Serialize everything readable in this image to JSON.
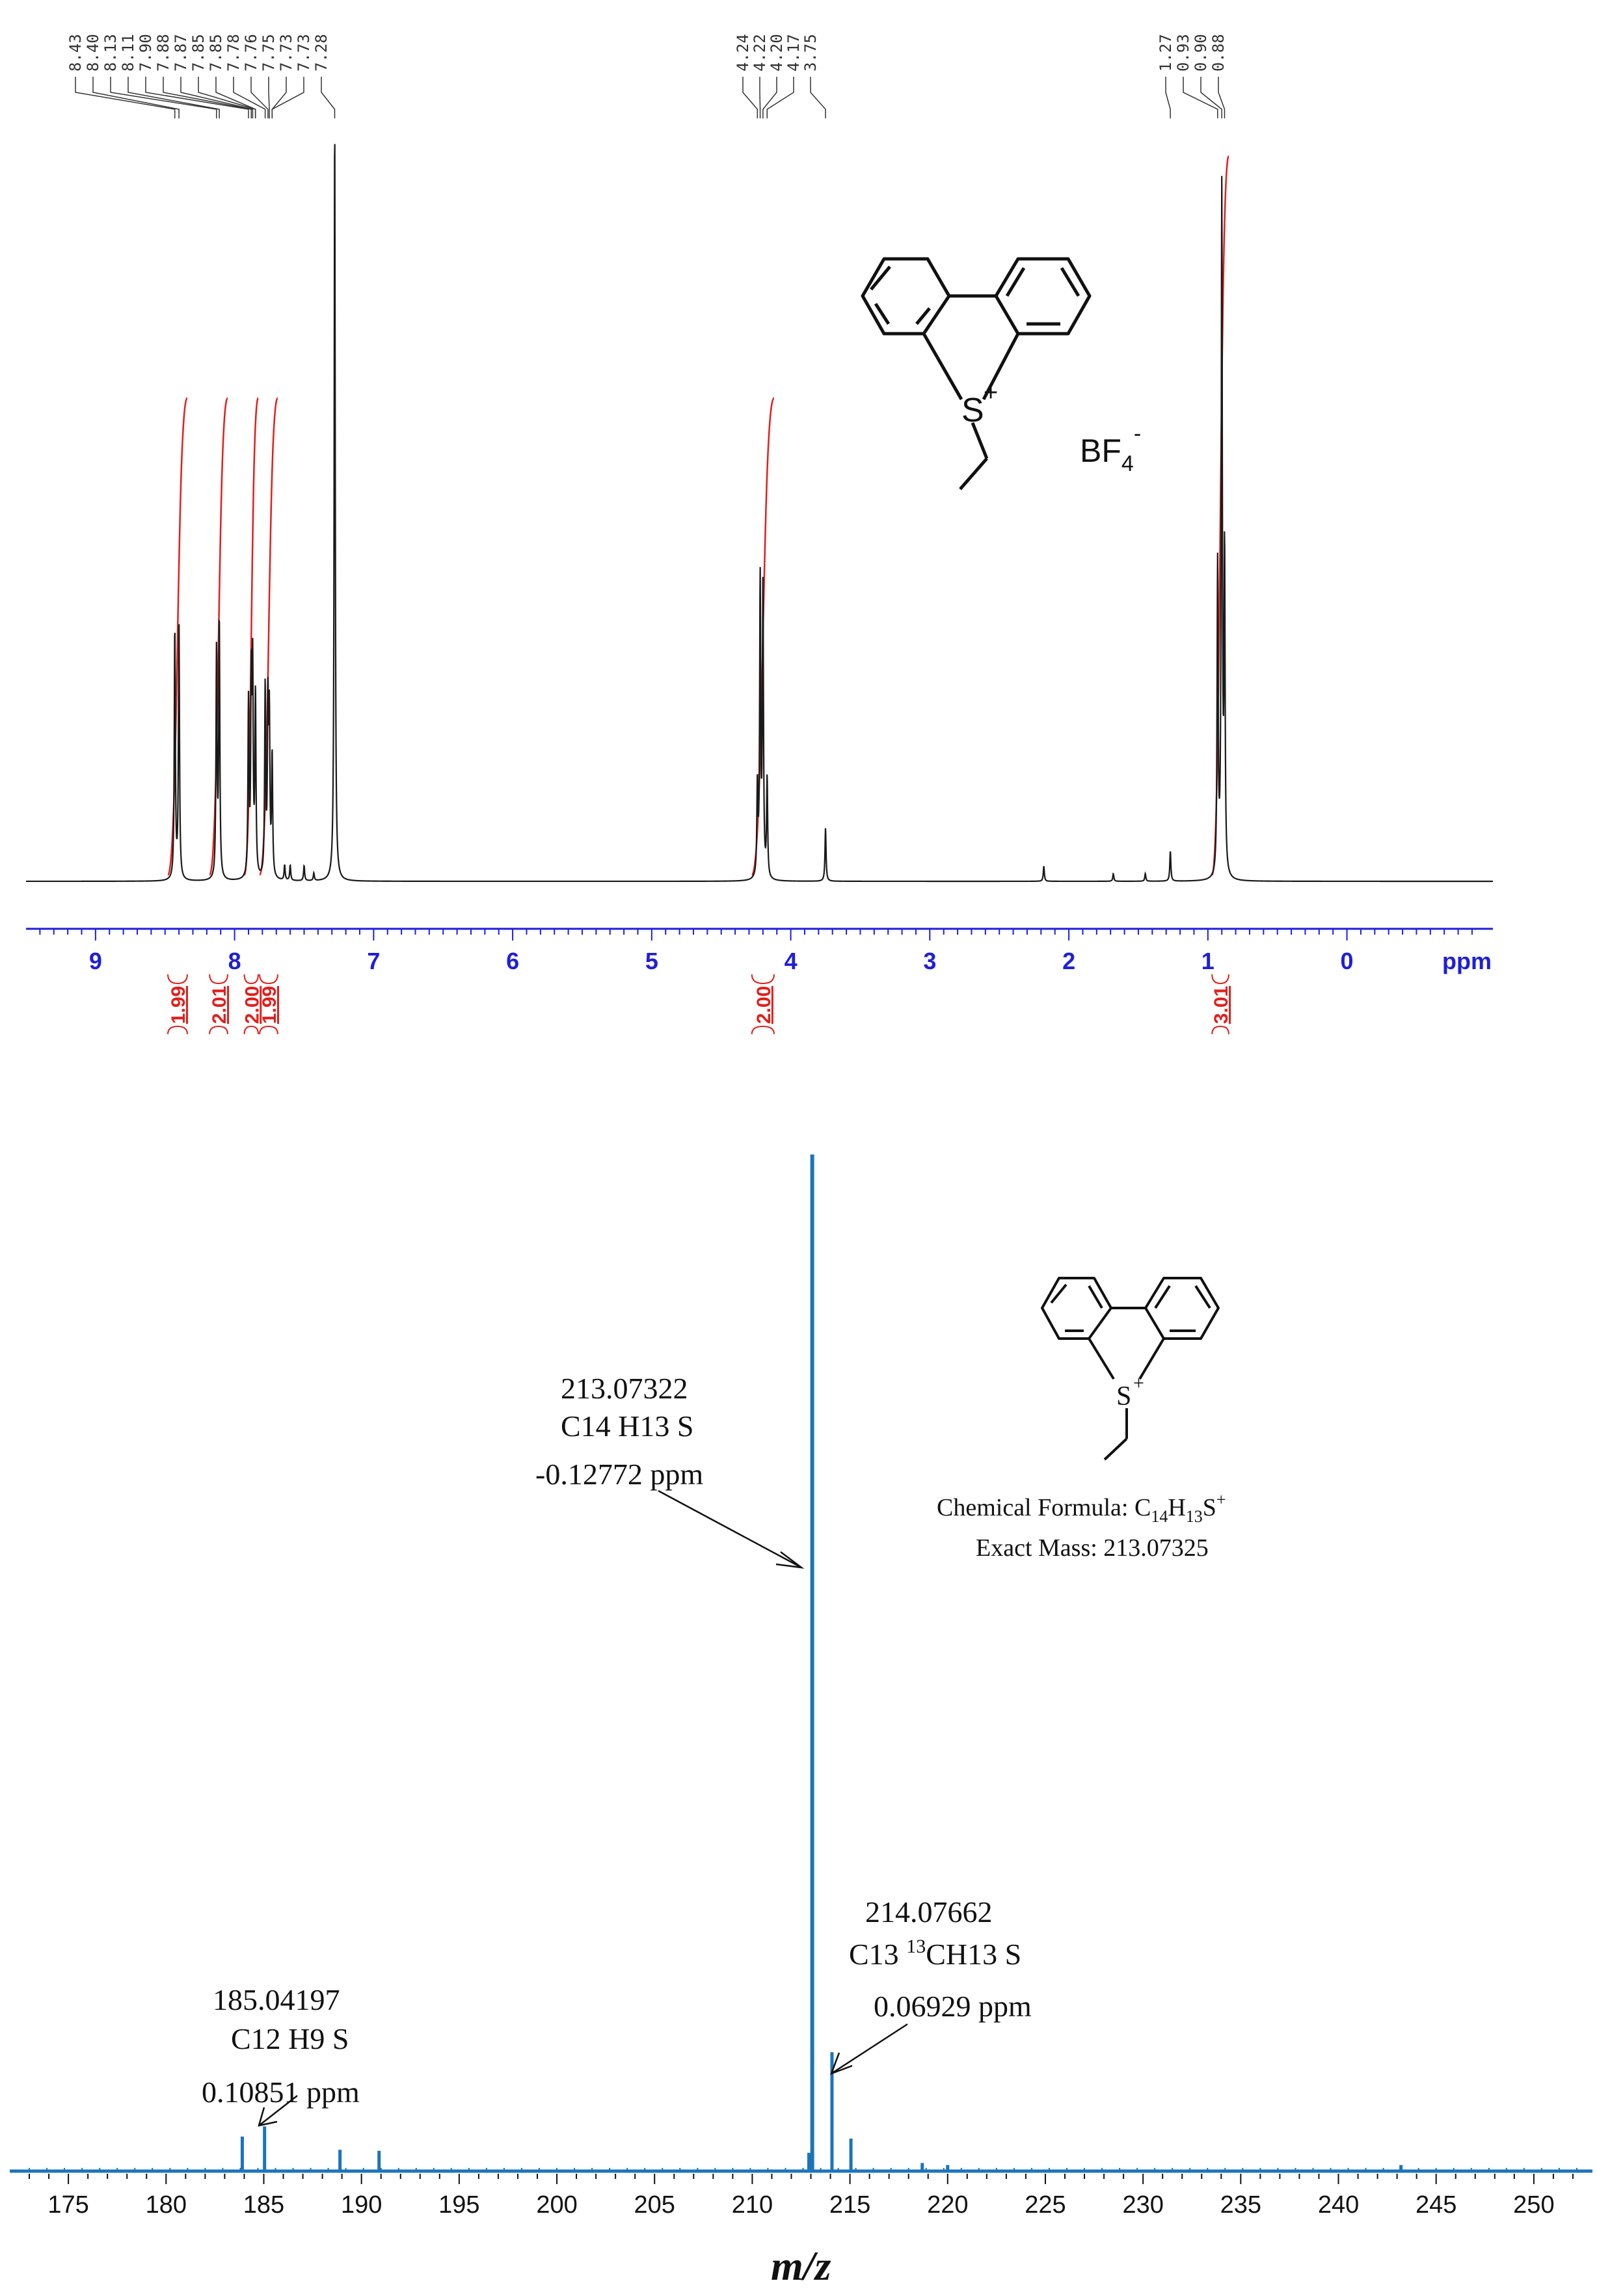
{
  "chart_data": [
    {
      "type": "line",
      "peak_labels": {
        "group1": [
          "8.43",
          "8.40",
          "8.13",
          "8.11",
          "7.90",
          "7.88",
          "7.87",
          "7.85",
          "7.85",
          "7.78",
          "7.76",
          "7.75",
          "7.73",
          "7.73",
          "7.28"
        ],
        "group2": [
          "4.24",
          "4.22",
          "4.20",
          "4.17",
          "3.75"
        ],
        "group3": [
          "1.27",
          "0.93",
          "0.90",
          "0.88"
        ]
      },
      "xaxis": {
        "ticks": [
          "9",
          "8",
          "7",
          "6",
          "5",
          "4",
          "3",
          "2",
          "1",
          "0"
        ],
        "unit": "ppm",
        "range": [
          9.5,
          -1.05
        ],
        "reversed": true
      },
      "integrals": [
        {
          "value": "1.99",
          "from": 8.48,
          "to": 8.34
        },
        {
          "value": "2.01",
          "from": 8.18,
          "to": 8.05
        },
        {
          "value": "2.00",
          "from": 7.93,
          "to": 7.83
        },
        {
          "value": "1.99",
          "from": 7.82,
          "to": 7.69
        },
        {
          "value": "2.00",
          "from": 4.28,
          "to": 4.12
        },
        {
          "value": "3.01",
          "from": 0.97,
          "to": 0.85
        }
      ],
      "peaks": [
        {
          "x": 8.43,
          "h": 0.33
        },
        {
          "x": 8.4,
          "h": 0.34
        },
        {
          "x": 8.13,
          "h": 0.3
        },
        {
          "x": 8.11,
          "h": 0.34
        },
        {
          "x": 7.9,
          "h": 0.23
        },
        {
          "x": 7.88,
          "h": 0.25
        },
        {
          "x": 7.87,
          "h": 0.26
        },
        {
          "x": 7.85,
          "h": 0.24
        },
        {
          "x": 7.78,
          "h": 0.25
        },
        {
          "x": 7.76,
          "h": 0.22
        },
        {
          "x": 7.75,
          "h": 0.2
        },
        {
          "x": 7.73,
          "h": 0.16
        },
        {
          "x": 7.64,
          "h": 0.02
        },
        {
          "x": 7.6,
          "h": 0.02
        },
        {
          "x": 7.5,
          "h": 0.02
        },
        {
          "x": 7.43,
          "h": 0.01
        },
        {
          "x": 7.28,
          "h": 1.0
        },
        {
          "x": 4.24,
          "h": 0.12
        },
        {
          "x": 4.22,
          "h": 0.39
        },
        {
          "x": 4.2,
          "h": 0.38
        },
        {
          "x": 4.17,
          "h": 0.13
        },
        {
          "x": 3.75,
          "h": 0.07
        },
        {
          "x": 2.18,
          "h": 0.02
        },
        {
          "x": 1.68,
          "h": 0.01
        },
        {
          "x": 1.45,
          "h": 0.01
        },
        {
          "x": 1.27,
          "h": 0.04
        },
        {
          "x": 0.93,
          "h": 0.41
        },
        {
          "x": 0.9,
          "h": 0.9
        },
        {
          "x": 0.88,
          "h": 0.42
        }
      ],
      "structure_label": {
        "text": "BF",
        "sub": "4",
        "sup": "-"
      },
      "structure_atom": "S",
      "structure_charge": "+"
    },
    {
      "type": "bar",
      "xlabel": "m/z",
      "xaxis": {
        "ticks": [
          "175",
          "180",
          "185",
          "190",
          "195",
          "200",
          "205",
          "210",
          "215",
          "220",
          "225",
          "230",
          "235",
          "240",
          "245",
          "250"
        ],
        "range": [
          172.0,
          253.0
        ]
      },
      "peaks": [
        {
          "x": 183.9,
          "h": 3.4
        },
        {
          "x": 185.04,
          "h": 4.4
        },
        {
          "x": 188.9,
          "h": 2.1
        },
        {
          "x": 190.9,
          "h": 2.0
        },
        {
          "x": 212.9,
          "h": 1.8
        },
        {
          "x": 213.07,
          "h": 100.0
        },
        {
          "x": 214.08,
          "h": 11.7
        },
        {
          "x": 215.05,
          "h": 3.2
        },
        {
          "x": 218.7,
          "h": 0.8
        },
        {
          "x": 220.0,
          "h": 0.6
        },
        {
          "x": 243.2,
          "h": 0.6
        }
      ],
      "annotations": [
        {
          "mz": "213.07322",
          "formula": "C14 H13 S",
          "error": "-0.12772 ppm"
        },
        {
          "mz": "214.07662",
          "formula_pre": "C13 ",
          "formula_sup": "13",
          "formula_post": "CH13 S",
          "error": "0.06929 ppm"
        },
        {
          "mz": "185.04197",
          "formula": "C12 H9 S",
          "error": "0.10851 ppm"
        }
      ],
      "structure_atom": "S",
      "structure_charge": "+",
      "formula_label": "Chemical Formula: ",
      "formula_parts": [
        "C",
        "14",
        "H",
        "13",
        "S",
        "+"
      ],
      "exact_mass": "Exact Mass: 213.07325"
    }
  ],
  "colors": {
    "nmr_trace": "#1a1a1a",
    "integral": "#e0201c",
    "nmr_axis": "#1f1fd8",
    "ms_peak": "#1b75bb",
    "text": "#111111"
  }
}
